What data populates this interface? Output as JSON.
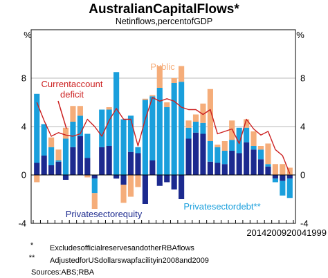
{
  "chart_data": {
    "type": "bar",
    "title": "AustralianCapitalFlows*",
    "subtitle": "Netinflows,percentofGDP",
    "ylabel_left": "%",
    "ylabel_right": "%",
    "ylim": [
      -4,
      12
    ],
    "yticks": [
      -4,
      0,
      4,
      8
    ],
    "x_axis_text": "2014200920041999",
    "stacked": true,
    "categories": [
      "1",
      "2",
      "3",
      "4",
      "5",
      "6",
      "7",
      "8",
      "9",
      "10",
      "11",
      "12",
      "13",
      "14",
      "15",
      "16",
      "17",
      "18",
      "19",
      "20",
      "21",
      "22",
      "23",
      "24",
      "25",
      "26",
      "27",
      "28",
      "29",
      "30",
      "31",
      "32",
      "33",
      "34",
      "35",
      "36"
    ],
    "series": [
      {
        "name": "Privatesectorequity",
        "color": "#1c2a8f",
        "values": [
          1.0,
          1.6,
          0.8,
          1.1,
          -0.4,
          2.3,
          3.2,
          1.4,
          -0.3,
          2.3,
          2.4,
          -0.3,
          -0.8,
          1.9,
          1.8,
          -2.4,
          1.2,
          -0.9,
          -0.6,
          -1.2,
          -2.0,
          3.0,
          3.5,
          3.4,
          1.1,
          1.0,
          0.9,
          2.0,
          1.8,
          2.7,
          2.1,
          1.3,
          0.7,
          -0.3,
          -0.5,
          -0.3
        ]
      },
      {
        "name": "Privatesectordebt**",
        "color": "#1a9fdc",
        "values": [
          5.7,
          2.6,
          1.5,
          0.1,
          3.0,
          2.1,
          1.7,
          2.0,
          -1.2,
          3.1,
          3.0,
          8.5,
          4.6,
          3.0,
          0.5,
          6.2,
          5.3,
          7.2,
          5.6,
          7.6,
          7.7,
          0.9,
          0.9,
          0.9,
          1.7,
          1.3,
          1.1,
          0.9,
          2.1,
          1.2,
          0.3,
          0.8,
          0.2,
          -0.3,
          -1.2,
          -1.6
        ]
      },
      {
        "name": "Public",
        "color": "#f5ad7a",
        "values": [
          -0.6,
          0.0,
          0.8,
          0.9,
          0.9,
          1.3,
          0.8,
          -0.2,
          -1.3,
          0.0,
          0.2,
          0.0,
          -1.5,
          -1.8,
          -1.0,
          0.1,
          0.1,
          1.8,
          0.4,
          0.4,
          1.3,
          0.6,
          0.6,
          1.6,
          4.3,
          0.2,
          0.8,
          1.6,
          0.0,
          0.7,
          1.2,
          0.3,
          1.7,
          0.9,
          0.9,
          0.6
        ]
      }
    ],
    "line": {
      "name": "Currentaccountdeficit",
      "color": "#cc2020",
      "values": [
        6.0,
        4.5,
        3.2,
        3.5,
        3.3,
        3.2,
        3.4,
        4.6,
        4.0,
        3.2,
        4.5,
        5.5,
        4.6,
        4.6,
        2.4,
        4.6,
        6.4,
        6.1,
        6.3,
        6.1,
        5.6,
        5.4,
        5.4,
        5.0,
        5.4,
        3.4,
        3.6,
        3.8,
        2.6,
        4.6,
        3.8,
        3.3,
        3.6,
        2.1,
        1.6,
        0.1
      ]
    },
    "annotations": {
      "current_account_line1": "Currentaccount",
      "current_account_line2": "deficit",
      "public": "Public",
      "private_equity": "Privatesectorequity",
      "private_debt": "Privatesectordebt**"
    },
    "notes": [
      {
        "mark": "*",
        "text": "ExcludesofficialreservesandotherRBAflows"
      },
      {
        "mark": "**",
        "text": "AdjustedforUSdollarswapfacilityin2008and2009"
      },
      {
        "mark": "",
        "text": "Sources:ABS;RBA"
      }
    ]
  }
}
